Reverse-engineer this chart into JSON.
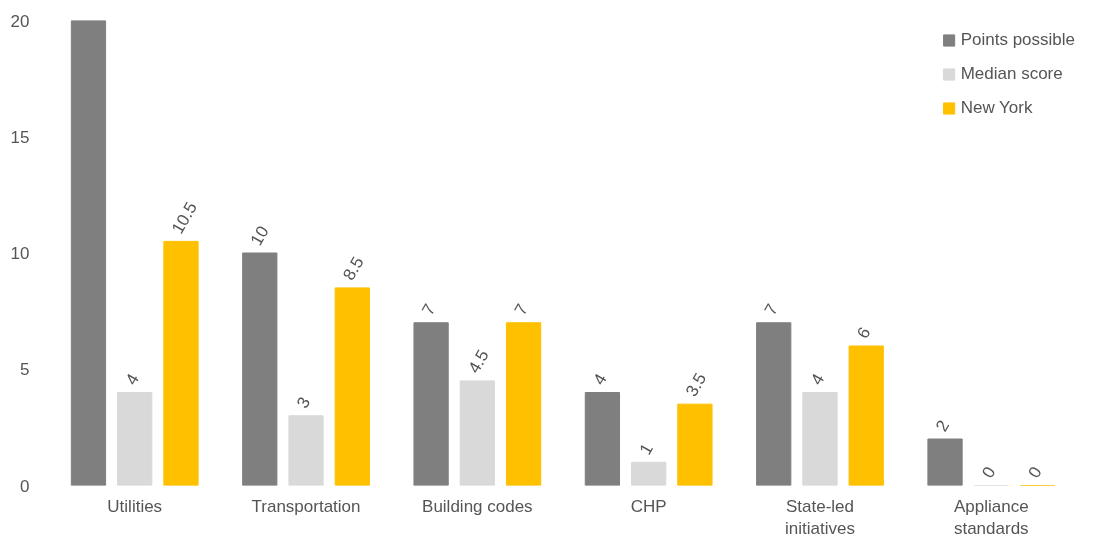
{
  "chart_data": {
    "type": "bar",
    "categories": [
      "Utilities",
      "Transportation",
      "Building codes",
      "CHP",
      "State-led\ninitiatives",
      "Appliance\nstandards"
    ],
    "series": [
      {
        "name": "Points possible",
        "color": "#7f7f7f",
        "values": [
          20,
          10,
          7,
          4,
          7,
          2
        ],
        "value_labels": [
          null,
          "10",
          "7",
          "4",
          "7",
          "2"
        ]
      },
      {
        "name": "Median score",
        "color": "#d9d9d9",
        "values": [
          4,
          3,
          4.5,
          1,
          4,
          0
        ],
        "value_labels": [
          "4",
          "3",
          "4.5",
          "1",
          "4",
          "0"
        ]
      },
      {
        "name": "New York",
        "color": "#ffc000",
        "values": [
          10.5,
          8.5,
          7,
          3.5,
          6,
          0
        ],
        "value_labels": [
          "10.5",
          "8.5",
          "7",
          "3.5",
          "6",
          "0"
        ]
      }
    ],
    "ylim": [
      0,
      20
    ],
    "yticks": [
      0,
      5,
      10,
      15,
      20
    ],
    "grid": false,
    "legend": "top right"
  }
}
